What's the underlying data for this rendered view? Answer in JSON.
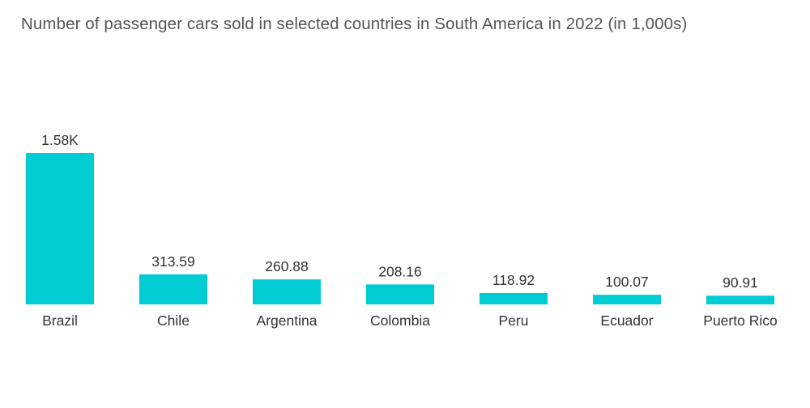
{
  "chart_data": {
    "type": "bar",
    "title": "Number of passenger cars sold in selected countries in South America in 2022 (in 1,000s)",
    "xlabel": "",
    "ylabel": "",
    "categories": [
      "Brazil",
      "Chile",
      "Argentina",
      "Colombia",
      "Peru",
      "Ecuador",
      "Puerto Rico"
    ],
    "values": [
      1580,
      313.59,
      260.88,
      208.16,
      118.92,
      100.07,
      90.91
    ],
    "value_labels": [
      "1.58K",
      "313.59",
      "260.88",
      "208.16",
      "118.92",
      "100.07",
      "90.91"
    ],
    "ylim": [
      0,
      1580
    ],
    "grid": false,
    "bar_color": "#00ccd4"
  }
}
